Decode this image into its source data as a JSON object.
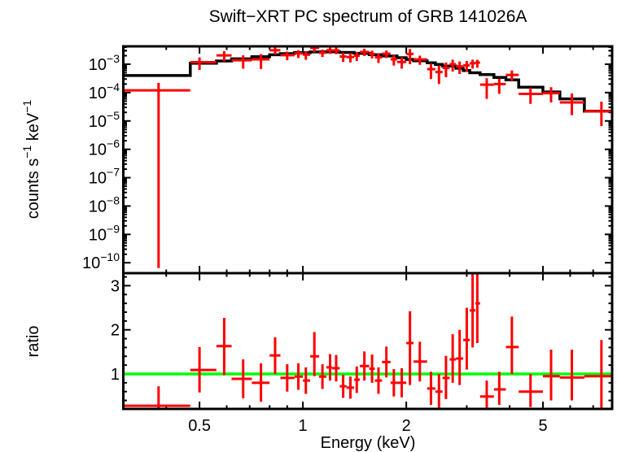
{
  "figure": {
    "title": "Swift−XRT PC spectrum of GRB 141026A",
    "background_color": "#ffffff",
    "frame_color": "#000000"
  },
  "chart_data": {
    "type": "scatter",
    "title": "Swift−XRT PC spectrum of GRB 141026A",
    "xlabel": "Energy (keV)",
    "xscale": "log",
    "xlim": [
      0.3,
      7.95
    ],
    "x_major_ticks": [
      0.5,
      1,
      2,
      5
    ],
    "x_major_tick_labels": [
      "0.5",
      "1",
      "2",
      "5"
    ],
    "x_minor_ticks": [
      0.4,
      0.6,
      0.7,
      0.8,
      0.9,
      3,
      4,
      6,
      7
    ],
    "grid": "off",
    "legend": "none",
    "panels": [
      {
        "name": "spectrum",
        "ylabel": "counts s⁻¹ keV⁻¹",
        "ylabel_parts": [
          [
            "counts s",
            false
          ],
          [
            "−1",
            true
          ],
          [
            " keV",
            false
          ],
          [
            "−1",
            true
          ]
        ],
        "yscale": "log",
        "ylim": [
          4.3e-11,
          0.00427
        ],
        "y_tick_exponents": [
          -3,
          -4,
          -5,
          -6,
          -7,
          -8,
          -9,
          -10
        ],
        "data_color": "#ff0000",
        "model_color": "#000000",
        "model_steps": {
          "energy_edges_kev": [
            0.3,
            0.47,
            0.56,
            0.62,
            0.71,
            0.8,
            0.86,
            0.945,
            1.05,
            1.17,
            1.28,
            1.41,
            1.56,
            1.7,
            1.88,
            2.0,
            2.1,
            2.3,
            2.43,
            2.55,
            2.79,
            2.93,
            3.06,
            3.28,
            3.6,
            3.9,
            4.25,
            5.0,
            5.6,
            6.6,
            8.0
          ],
          "rate": [
            0.0004,
            0.00108,
            0.0013,
            0.00155,
            0.00185,
            0.00215,
            0.00235,
            0.00255,
            0.0027,
            0.00272,
            0.0026,
            0.00242,
            0.00218,
            0.00195,
            0.0017,
            0.00148,
            0.00132,
            0.00112,
            0.00098,
            0.00086,
            0.00072,
            0.0006,
            0.0005,
            0.00043,
            0.00034,
            0.00028,
            0.000155,
            0.000105,
            6e-05,
            2.2e-05
          ]
        }
      },
      {
        "name": "ratio",
        "ylabel": "ratio",
        "yscale": "linear",
        "ylim": [
          0.208,
          3.284
        ],
        "y_major_ticks": [
          1,
          2,
          3
        ],
        "y_major_tick_labels": [
          "1",
          "2",
          "3"
        ],
        "y_minor_tick_step": 0.2,
        "data_color": "#ff0000",
        "reference_line_y": 1,
        "reference_line_color": "#00ff00"
      }
    ],
    "points_columns": [
      "energy_kev",
      "energy_lo",
      "energy_hi",
      "rate",
      "rate_lo",
      "rate_hi",
      "ratio",
      "ratio_lo",
      "ratio_hi"
    ],
    "points": [
      [
        0.38,
        0.3,
        0.47,
        0.00012,
        6.5e-11,
        0.00022,
        0.28,
        0.0,
        0.72
      ],
      [
        0.5,
        0.47,
        0.56,
        0.00118,
        0.00063,
        0.00174,
        1.09,
        0.58,
        1.61
      ],
      [
        0.59,
        0.56,
        0.62,
        0.00205,
        0.00126,
        0.0029,
        1.63,
        0.97,
        2.27
      ],
      [
        0.67,
        0.62,
        0.71,
        0.00138,
        0.0007,
        0.00206,
        0.89,
        0.45,
        1.33
      ],
      [
        0.755,
        0.71,
        0.8,
        0.00148,
        0.00068,
        0.00228,
        0.8,
        0.37,
        1.24
      ],
      [
        0.83,
        0.8,
        0.86,
        0.0031,
        0.0022,
        0.00395,
        1.42,
        1.0,
        1.83
      ],
      [
        0.9,
        0.86,
        0.945,
        0.00209,
        0.00138,
        0.0028,
        0.91,
        0.6,
        1.22
      ],
      [
        0.97,
        0.945,
        1.0,
        0.0024,
        0.00165,
        0.00314,
        0.94,
        0.64,
        1.24
      ],
      [
        1.02,
        1.0,
        1.05,
        0.00217,
        0.00143,
        0.00291,
        0.85,
        0.55,
        1.15
      ],
      [
        1.08,
        1.05,
        1.115,
        0.00378,
        0.00257,
        0.0046,
        1.4,
        0.95,
        1.95
      ],
      [
        1.14,
        1.115,
        1.17,
        0.00254,
        0.0018,
        0.00328,
        0.94,
        0.66,
        1.22
      ],
      [
        1.2,
        1.17,
        1.215,
        0.00313,
        0.0023,
        0.00395,
        1.15,
        0.85,
        1.45
      ],
      [
        1.25,
        1.215,
        1.28,
        0.00307,
        0.00225,
        0.0039,
        1.13,
        0.83,
        1.43
      ],
      [
        1.31,
        1.28,
        1.34,
        0.00187,
        0.0012,
        0.00255,
        0.72,
        0.46,
        0.98
      ],
      [
        1.375,
        1.34,
        1.41,
        0.00179,
        0.00115,
        0.00245,
        0.69,
        0.44,
        0.94
      ],
      [
        1.435,
        1.41,
        1.465,
        0.002,
        0.0013,
        0.0027,
        0.87,
        0.57,
        1.17
      ],
      [
        1.51,
        1.465,
        1.56,
        0.00271,
        0.00195,
        0.0035,
        1.18,
        0.85,
        1.51
      ],
      [
        1.59,
        1.56,
        1.62,
        0.0023,
        0.0016,
        0.003,
        1.12,
        0.8,
        1.44
      ],
      [
        1.66,
        1.62,
        1.7,
        0.00175,
        0.0011,
        0.0024,
        0.85,
        0.55,
        1.15
      ],
      [
        1.75,
        1.7,
        1.8,
        0.00235,
        0.00165,
        0.00305,
        1.27,
        0.92,
        1.62
      ],
      [
        1.84,
        1.8,
        1.88,
        0.00148,
        0.0009,
        0.0021,
        0.8,
        0.49,
        1.11
      ],
      [
        1.94,
        1.88,
        2.0,
        0.0012,
        0.0007,
        0.00175,
        0.8,
        0.47,
        1.13
      ],
      [
        2.05,
        2.0,
        2.1,
        0.0023,
        0.001,
        0.00345,
        1.7,
        0.75,
        2.42
      ],
      [
        2.19,
        2.1,
        2.3,
        0.00147,
        0.00095,
        0.002,
        1.28,
        0.83,
        1.73
      ],
      [
        2.36,
        2.3,
        2.43,
        0.00067,
        0.0003,
        0.00105,
        0.67,
        0.3,
        1.05
      ],
      [
        2.49,
        2.43,
        2.55,
        0.00053,
        0.0002,
        0.0009,
        0.6,
        0.23,
        1.0
      ],
      [
        2.61,
        2.55,
        2.675,
        0.00074,
        0.00035,
        0.00115,
        0.91,
        0.43,
        1.41
      ],
      [
        2.73,
        2.675,
        2.79,
        0.001,
        0.00055,
        0.00145,
        1.33,
        0.8,
        1.9
      ],
      [
        2.86,
        2.79,
        2.93,
        0.00084,
        0.00045,
        0.00125,
        1.35,
        0.75,
        2.0
      ],
      [
        3.0,
        2.93,
        3.06,
        0.00092,
        0.00055,
        0.0013,
        1.77,
        1.1,
        2.5
      ],
      [
        3.12,
        3.06,
        3.18,
        0.00108,
        0.0007,
        0.00145,
        2.44,
        1.6,
        3.3
      ],
      [
        3.22,
        3.18,
        3.28,
        0.00114,
        0.00075,
        0.00143,
        2.6,
        1.7,
        3.4
      ],
      [
        3.43,
        3.28,
        3.6,
        0.00019,
        6e-05,
        0.00032,
        0.49,
        0.15,
        0.85
      ],
      [
        3.73,
        3.6,
        3.9,
        0.0002,
        9e-05,
        0.00031,
        0.65,
        0.3,
        1.05
      ],
      [
        4.06,
        3.9,
        4.25,
        0.00042,
        0.00026,
        0.0006,
        1.61,
        1.0,
        2.3
      ],
      [
        4.6,
        4.25,
        5.0,
        9e-05,
        4e-05,
        0.00015,
        0.6,
        0.25,
        1.0
      ],
      [
        5.28,
        5.0,
        5.6,
        9.5e-05,
        4.5e-05,
        0.000155,
        0.95,
        0.4,
        1.55
      ],
      [
        6.07,
        5.6,
        6.6,
        4.5e-05,
        1.6e-05,
        9.3e-05,
        0.92,
        0.4,
        1.55
      ],
      [
        7.4,
        6.6,
        8.0,
        2.2e-05,
        6.6e-06,
        4.8e-05,
        0.95,
        0.23,
        1.77
      ]
    ]
  }
}
